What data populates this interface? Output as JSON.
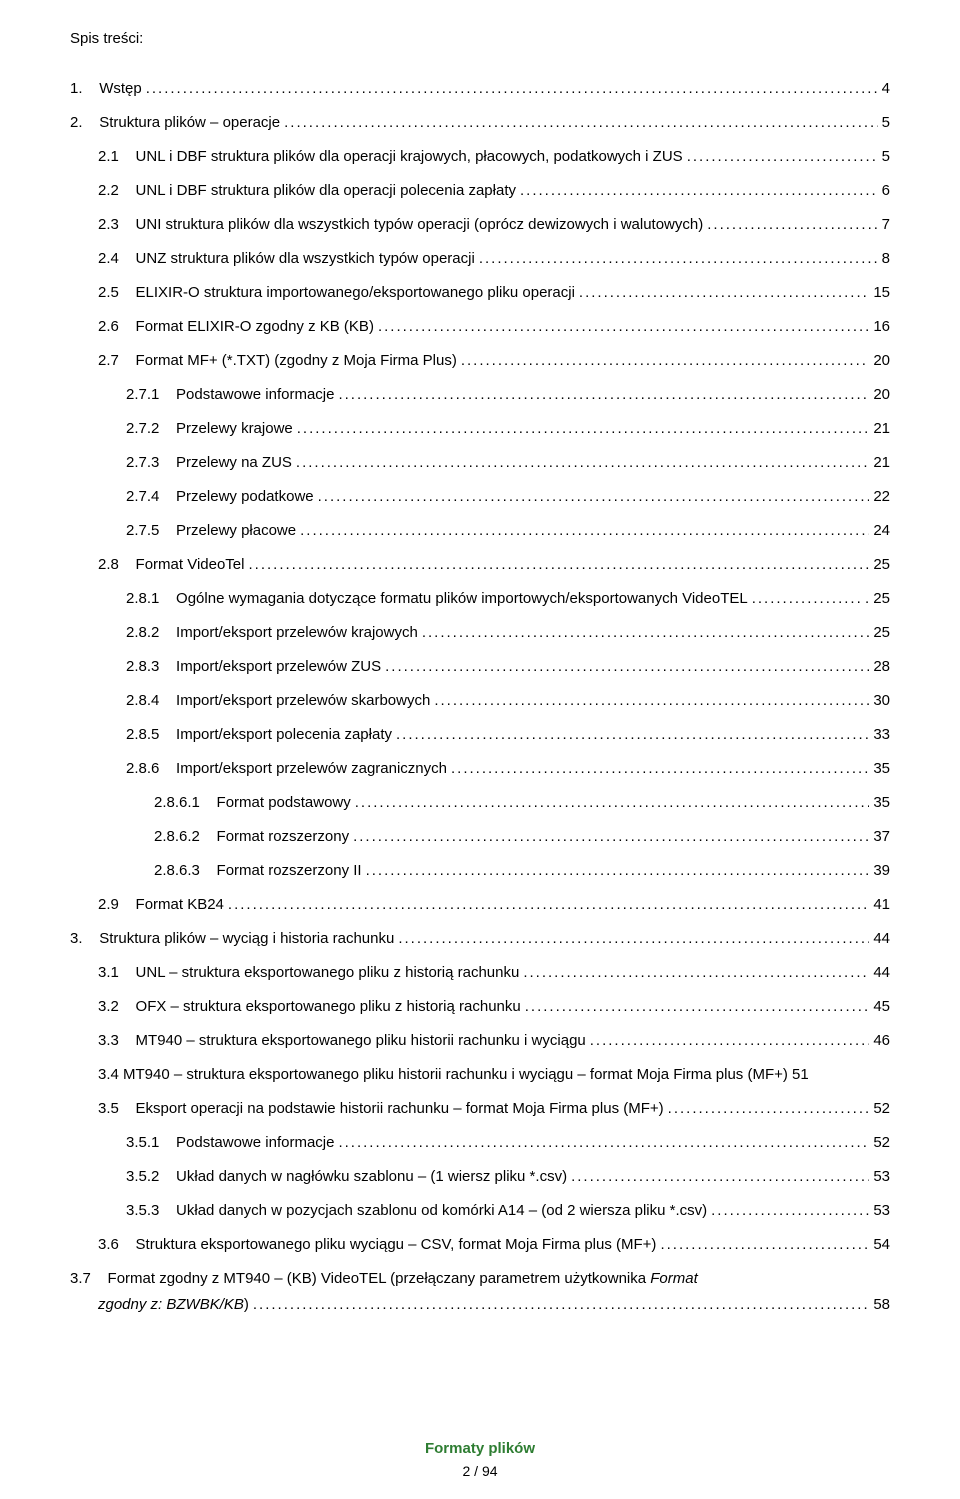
{
  "header": "Spis treści:",
  "footer_title": "Formaty plików",
  "footer_page": "2 / 94",
  "colors": {
    "text": "#000000",
    "footer_title": "#2e7d32",
    "background": "#ffffff"
  },
  "typography": {
    "body_fontsize": 15,
    "line_height": 1.6,
    "font_family": "Arial"
  },
  "toc": [
    {
      "indent": 0,
      "num": "1.",
      "title": "Wstęp",
      "page": "4"
    },
    {
      "indent": 0,
      "num": "2.",
      "title": "Struktura plików – operacje",
      "page": "5"
    },
    {
      "indent": 1,
      "num": "2.1",
      "title": "UNL i DBF struktura plików dla operacji krajowych, płacowych, podatkowych i ZUS",
      "page": "5"
    },
    {
      "indent": 1,
      "num": "2.2",
      "title": "UNL i DBF struktura plików dla operacji polecenia zapłaty",
      "page": "6"
    },
    {
      "indent": 1,
      "num": "2.3",
      "title": "UNI struktura plików dla wszystkich typów operacji (oprócz dewizowych i walutowych)",
      "page": "7"
    },
    {
      "indent": 1,
      "num": "2.4",
      "title": "UNZ struktura plików dla wszystkich typów operacji",
      "page": "8"
    },
    {
      "indent": 1,
      "num": "2.5",
      "title": "ELIXIR-O struktura importowanego/eksportowanego pliku operacji",
      "page": "15"
    },
    {
      "indent": 1,
      "num": "2.6",
      "title": "Format ELIXIR-O zgodny z KB (KB)",
      "page": "16"
    },
    {
      "indent": 1,
      "num": "2.7",
      "title": "Format MF+ (*.TXT) (zgodny z Moja Firma Plus)",
      "page": "20"
    },
    {
      "indent": 2,
      "num": "2.7.1",
      "title": "Podstawowe informacje",
      "page": "20"
    },
    {
      "indent": 2,
      "num": "2.7.2",
      "title": "Przelewy krajowe",
      "page": "21"
    },
    {
      "indent": 2,
      "num": "2.7.3",
      "title": "Przelewy na ZUS",
      "page": "21"
    },
    {
      "indent": 2,
      "num": "2.7.4",
      "title": "Przelewy podatkowe",
      "page": "22"
    },
    {
      "indent": 2,
      "num": "2.7.5",
      "title": "Przelewy płacowe",
      "page": "24"
    },
    {
      "indent": 1,
      "num": "2.8",
      "title": "Format VideoTel",
      "page": "25"
    },
    {
      "indent": 2,
      "num": "2.8.1",
      "title": "Ogólne wymagania dotyczące formatu plików importowych/eksportowanych VideoTEL",
      "page": ". 25"
    },
    {
      "indent": 2,
      "num": "2.8.2",
      "title": "Import/eksport przelewów krajowych",
      "page": "25"
    },
    {
      "indent": 2,
      "num": "2.8.3",
      "title": "Import/eksport przelewów ZUS",
      "page": "28"
    },
    {
      "indent": 2,
      "num": "2.8.4",
      "title": "Import/eksport przelewów skarbowych",
      "page": "30"
    },
    {
      "indent": 2,
      "num": "2.8.5",
      "title": "Import/eksport polecenia zapłaty",
      "page": "33"
    },
    {
      "indent": 2,
      "num": "2.8.6",
      "title": "Import/eksport przelewów zagranicznych",
      "page": "35"
    },
    {
      "indent": 3,
      "num": "2.8.6.1",
      "title": "Format podstawowy",
      "page": "35"
    },
    {
      "indent": 3,
      "num": "2.8.6.2",
      "title": "Format rozszerzony",
      "page": "37"
    },
    {
      "indent": 3,
      "num": "2.8.6.3",
      "title": "Format rozszerzony II",
      "page": "39"
    },
    {
      "indent": 1,
      "num": "2.9",
      "title": "Format KB24",
      "page": "41"
    },
    {
      "indent": 0,
      "num": "3.",
      "title": "Struktura plików – wyciąg i historia rachunku",
      "page": "44"
    },
    {
      "indent": 1,
      "num": "3.1",
      "title": "UNL – struktura eksportowanego pliku z historią rachunku",
      "page": "44"
    },
    {
      "indent": 1,
      "num": "3.2",
      "title": "OFX – struktura eksportowanego pliku z historią rachunku",
      "page": "45"
    },
    {
      "indent": 1,
      "num": "3.3",
      "title": "MT940 – struktura eksportowanego pliku historii rachunku i wyciągu",
      "page": "46"
    },
    {
      "indent": 1,
      "num": "3.4",
      "title_wrap": "MT940 – struktura eksportowanego pliku historii rachunku i wyciągu – format Moja Firma plus (MF+) 51",
      "is_wrap": true
    },
    {
      "indent": 1,
      "num": "3.5",
      "title": "Eksport operacji na podstawie historii rachunku – format Moja Firma plus (MF+)",
      "page": "52"
    },
    {
      "indent": 2,
      "num": "3.5.1",
      "title": "Podstawowe informacje",
      "page": "52"
    },
    {
      "indent": 2,
      "num": "3.5.2",
      "title": "Układ danych w nagłówku szablonu – (1 wiersz pliku *.csv)",
      "page": "53"
    },
    {
      "indent": 2,
      "num": "3.5.3",
      "title": "Układ danych w pozycjach szablonu od  komórki A14 – (od 2 wiersza pliku *.csv)",
      "page": "53"
    },
    {
      "indent": 1,
      "num": "3.6",
      "title": "Struktura eksportowanego pliku wyciągu – CSV, format Moja Firma plus (MF+)",
      "page": "54"
    },
    {
      "indent": 1,
      "num": "3.7",
      "title_wrap_parts": [
        "Format zgodny z MT940 – (KB) VideoTEL (przełączany parametrem użytkownika ",
        "Format zgodny z: BZWBK/KB",
        " )"
      ],
      "page": "58",
      "is_wrap_italic": true
    }
  ]
}
